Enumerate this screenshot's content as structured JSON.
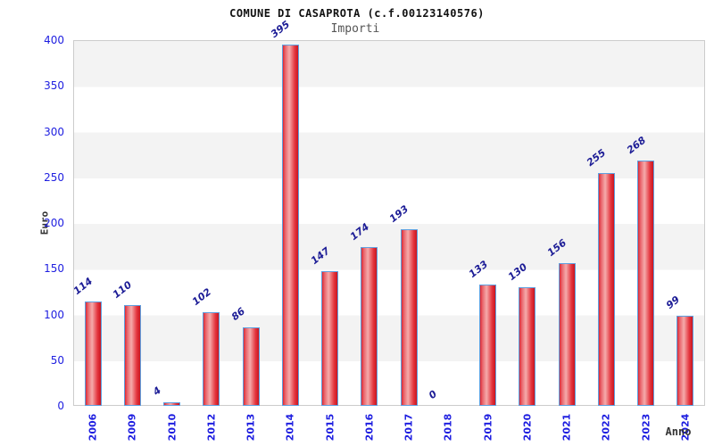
{
  "chart_data": {
    "type": "bar",
    "title": "COMUNE DI CASAPROTA (c.f.00123140576)",
    "subtitle": "Importi",
    "xlabel": "Anno",
    "ylabel": "Euro",
    "categories": [
      "2006",
      "2009",
      "2010",
      "2012",
      "2013",
      "2014",
      "2015",
      "2016",
      "2017",
      "2018",
      "2019",
      "2020",
      "2021",
      "2022",
      "2023",
      "2024"
    ],
    "values": [
      114,
      110,
      4,
      102,
      86,
      395,
      147,
      174,
      193,
      0,
      133,
      130,
      156,
      255,
      268,
      99
    ],
    "ylim": [
      0,
      400
    ],
    "yticks": [
      0,
      50,
      100,
      150,
      200,
      250,
      300,
      350,
      400
    ],
    "grid": "alternating horizontal bands every 50 units, gray band at top (350-400)",
    "legend": "none",
    "colors": {
      "bar_fill": "#e01f28",
      "bar_highlight": "#f5abab",
      "bar_border": "#5ea0e0",
      "tick_label": "#1e1ee0",
      "value_label": "#1c1c96",
      "band_gray": "#f3f3f3",
      "plot_border": "#cccccc",
      "title": "#111111",
      "subtitle": "#555555",
      "axis_label": "#333333"
    }
  }
}
